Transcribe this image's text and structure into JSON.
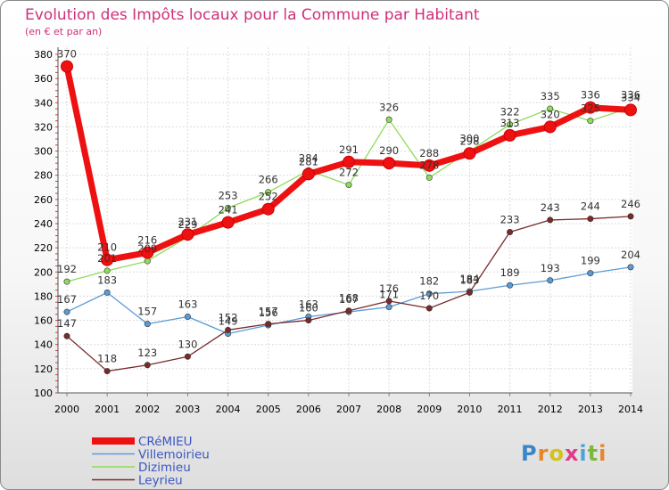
{
  "header": {
    "title": "Evolution des Impôts locaux pour la Commune par Habitant",
    "subtitle": "(en € et par an)"
  },
  "logo": {
    "letters": [
      "P",
      "r",
      "o",
      "x",
      "i",
      "t",
      "i"
    ],
    "colors": [
      "#3a86c8",
      "#e8862a",
      "#d4c21a",
      "#e23a8a",
      "#4aa4d8",
      "#7ab83a",
      "#e8862a"
    ]
  },
  "chart_data": {
    "type": "line",
    "title": "Evolution des Impôts locaux pour la Commune par Habitant",
    "subtitle": "(en € et par an)",
    "x": [
      2000,
      2001,
      2002,
      2003,
      2004,
      2005,
      2006,
      2007,
      2008,
      2009,
      2010,
      2011,
      2012,
      2013,
      2014
    ],
    "ylim": [
      100,
      380
    ],
    "yticks": [
      100,
      120,
      140,
      160,
      180,
      200,
      220,
      240,
      260,
      280,
      300,
      320,
      340,
      360,
      380
    ],
    "grid": true,
    "legend": "bottom-left",
    "series": [
      {
        "name": "CRéMIEU",
        "color": "#ee1111",
        "values": [
          370,
          210,
          216,
          231,
          241,
          252,
          281,
          291,
          290,
          288,
          298,
          313,
          320,
          336,
          334
        ]
      },
      {
        "name": "Villemoirieu",
        "color": "#5b9bd5",
        "values": [
          167,
          183,
          157,
          163,
          149,
          156,
          163,
          167,
          171,
          182,
          184,
          189,
          193,
          199,
          204
        ]
      },
      {
        "name": "Dizimieu",
        "color": "#8fdb5a",
        "values": [
          192,
          201,
          209,
          229,
          253,
          266,
          284,
          272,
          326,
          278,
          300,
          322,
          335,
          325,
          336
        ]
      },
      {
        "name": "Leyrieu",
        "color": "#7a2a2a",
        "values": [
          147,
          118,
          123,
          130,
          152,
          157,
          160,
          168,
          176,
          170,
          183,
          233,
          243,
          244,
          246
        ]
      }
    ]
  }
}
